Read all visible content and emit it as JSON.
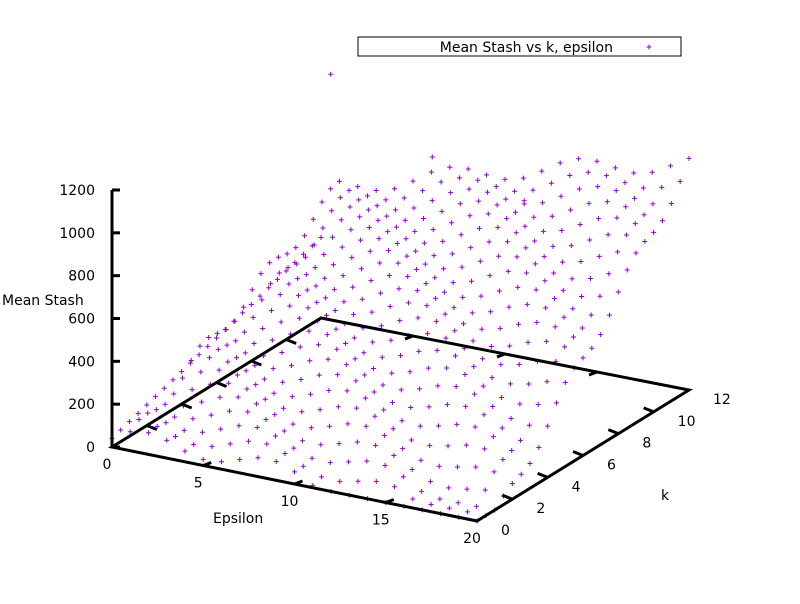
{
  "colors": {
    "points": "#9400d3",
    "axes": "#000000",
    "background": "#ffffff"
  },
  "chart_data": {
    "type": "scatter",
    "projection": "3d",
    "legend": {
      "label": "Mean Stash vs k, epsilon",
      "position": "top-right"
    },
    "axes": {
      "x": {
        "label": "Epsilon",
        "range": [
          0,
          20
        ],
        "ticks": [
          "0",
          "5",
          "10",
          "15",
          "20"
        ]
      },
      "y": {
        "label": "k",
        "range": [
          0,
          12
        ],
        "ticks": [
          "0",
          "2",
          "4",
          "6",
          "8",
          "10",
          "12"
        ]
      },
      "z": {
        "label": "Mean Stash",
        "range": [
          0,
          1200
        ],
        "ticks": [
          "0",
          "200",
          "400",
          "600",
          "800",
          "1000",
          "1200"
        ]
      }
    },
    "grid": false,
    "surface_estimate": {
      "description": "points cover epsilon 0..20 by 1 and k 0..12 by 0.5",
      "peak_points": [
        {
          "epsilon": 1,
          "k": 11.5,
          "mean_stash": 1180
        },
        {
          "epsilon": 7,
          "k": 11,
          "mean_stash": 920
        },
        {
          "epsilon": 12,
          "k": 11,
          "mean_stash": 800
        }
      ]
    }
  }
}
